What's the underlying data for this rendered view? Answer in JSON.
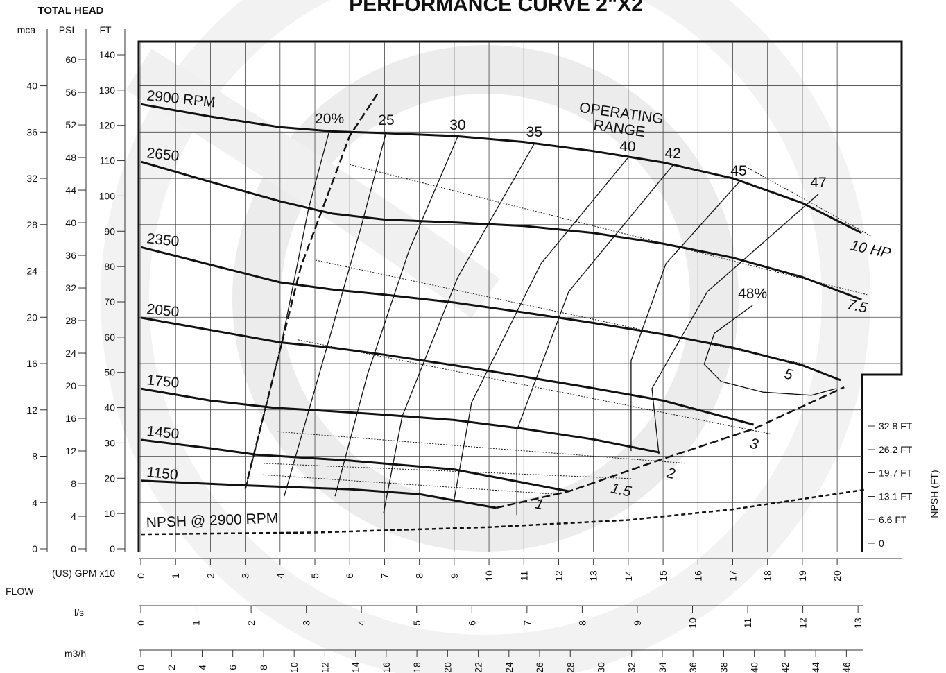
{
  "chart_data": {
    "type": "line",
    "title": "PERFORMANCE CURVE 2\"X2",
    "y_title": "TOTAL HEAD",
    "y_label": "FT",
    "x_label": "(US) GPM x10",
    "x_title": "FLOW",
    "xlim": [
      0,
      21.85
    ],
    "xticks": [
      0,
      1,
      2,
      3,
      4,
      5,
      6,
      7,
      8,
      9,
      10,
      11,
      12,
      13,
      14,
      15,
      16,
      17,
      18,
      19,
      20
    ],
    "ylim": [
      0,
      140
    ],
    "yticks": [
      0,
      10,
      20,
      30,
      40,
      50,
      60,
      70,
      80,
      90,
      100,
      110,
      120,
      130,
      140
    ],
    "grid": true,
    "psi_axis": {
      "label": "PSI",
      "lim": [
        0,
        60.6
      ],
      "ticks": [
        0,
        4,
        8,
        12,
        16,
        20,
        24,
        28,
        32,
        36,
        40,
        44,
        48,
        52,
        56,
        60
      ]
    },
    "mca_axis": {
      "label": "mca",
      "lim": [
        0,
        42.67
      ],
      "ticks": [
        0,
        4,
        8,
        12,
        16,
        20,
        24,
        28,
        32,
        36,
        40
      ]
    },
    "ls_axis": {
      "label": "l/s",
      "lim": [
        0,
        13.79
      ],
      "ticks": [
        0,
        1,
        2,
        3,
        4,
        5,
        6,
        7,
        8,
        9,
        10,
        11,
        12,
        13
      ]
    },
    "m3h_axis": {
      "label": "m3/h",
      "lim": [
        0,
        49.6
      ],
      "ticks": [
        0,
        2,
        4,
        6,
        8,
        10,
        12,
        14,
        16,
        18,
        20,
        22,
        24,
        26,
        28,
        30,
        32,
        34,
        36,
        38,
        40,
        42,
        44,
        46
      ]
    },
    "y2lim": [
      0,
      32.8
    ],
    "y2_label": "NPSH  (FT)",
    "y2ticks": [
      {
        "value": 0,
        "label": "0"
      },
      {
        "value": 6.6,
        "label": "6.6 FT"
      },
      {
        "value": 13.1,
        "label": "13.1 FT"
      },
      {
        "value": 19.7,
        "label": "19.7 FT"
      },
      {
        "value": 26.2,
        "label": "26.2 FT"
      },
      {
        "value": 32.8,
        "label": "32.8 FT"
      }
    ],
    "series": [
      {
        "name": "2900 RPM",
        "color": "#111111",
        "x": [
          0,
          2,
          4,
          5.5,
          7,
          9,
          11,
          13,
          15,
          17,
          19,
          20.7
        ],
        "values": [
          126,
          122.5,
          119.5,
          118.3,
          117.8,
          117,
          115.3,
          112.7,
          109.5,
          105,
          98,
          89.5
        ]
      },
      {
        "name": "2650",
        "color": "#111111",
        "x": [
          0,
          2,
          4,
          5.5,
          7,
          9,
          11,
          13,
          15,
          17,
          19,
          20.7
        ],
        "values": [
          109.7,
          104,
          98.5,
          95,
          93.3,
          92.5,
          91.5,
          89.5,
          86.5,
          82.5,
          77,
          70.6
        ]
      },
      {
        "name": "2350",
        "color": "#111111",
        "x": [
          0,
          2,
          4,
          5.5,
          7,
          9,
          11,
          13,
          15,
          17,
          19,
          20.1
        ],
        "values": [
          85.5,
          80.5,
          75.5,
          73.5,
          72,
          69.8,
          67,
          64,
          60.8,
          57,
          52,
          47.8
        ]
      },
      {
        "name": "2050",
        "color": "#111111",
        "x": [
          0,
          2,
          4,
          5.5,
          7,
          9,
          11,
          13,
          15,
          17.6
        ],
        "values": [
          65.5,
          62,
          58.5,
          57,
          55,
          52,
          48.8,
          45.5,
          42,
          35.2
        ]
      },
      {
        "name": "1750",
        "color": "#111111",
        "x": [
          0,
          2,
          3.8,
          5.5,
          7,
          9,
          11,
          13,
          14.9
        ],
        "values": [
          45.4,
          42,
          40,
          39,
          38,
          36.5,
          34,
          31,
          27.3
        ]
      },
      {
        "name": "1450",
        "color": "#111111",
        "x": [
          0,
          2,
          3.3,
          6,
          9,
          12.3
        ],
        "values": [
          30.9,
          28.5,
          26.7,
          25,
          22.5,
          16.3
        ]
      },
      {
        "name": "1150",
        "color": "#111111",
        "x": [
          0,
          3.2,
          6,
          8,
          10.2
        ],
        "values": [
          19.3,
          17.9,
          16.9,
          15.5,
          11.6
        ]
      }
    ],
    "efficiency_curves": [
      {
        "name": "20%",
        "x": [
          5.42,
          4.82,
          4.02,
          3.03
        ],
        "values": [
          118.6,
          96.5,
          57.2,
          17.9
        ]
      },
      {
        "name": "25",
        "x": [
          7.05,
          6.31,
          5.12,
          4.12
        ],
        "values": [
          118.2,
          90.6,
          49.4,
          14.9
        ]
      },
      {
        "name": "30",
        "x": [
          9.1,
          7.71,
          6.51,
          5.58
        ],
        "values": [
          116.8,
          84.7,
          49.4,
          14.9
        ]
      },
      {
        "name": "35",
        "x": [
          11.3,
          9.1,
          7.51,
          6.97
        ],
        "values": [
          114.8,
          76.9,
          37.6,
          10
        ]
      },
      {
        "name": "40",
        "x": [
          13.98,
          11.49,
          9.5,
          9.0
        ],
        "values": [
          110.7,
          80.8,
          41.5,
          14
        ]
      },
      {
        "name": "42",
        "x": [
          15.28,
          12.29,
          10.8,
          10.8
        ],
        "values": [
          108.7,
          72.9,
          33.6,
          9.6
        ]
      },
      {
        "name": "45",
        "x": [
          17.17,
          15.08,
          14.08,
          14.08
        ],
        "values": [
          103.8,
          80.8,
          53.3,
          27.7
        ]
      },
      {
        "name": "47",
        "x": [
          19.46,
          16.27,
          14.68,
          14.88
        ],
        "values": [
          100.5,
          72.9,
          45.4,
          26.7
        ]
      },
      {
        "name": "48%",
        "x": [
          17.57,
          16.47,
          16.18,
          16.67,
          17.87,
          19.26,
          19.96
        ],
        "values": [
          69,
          61.1,
          52.3,
          47.4,
          44.4,
          43.5,
          45.4
        ]
      }
    ],
    "power_curves": [
      {
        "name": "10 HP",
        "x": [
          17.37,
          20.96
        ],
        "values": [
          108.3,
          88.7
        ]
      },
      {
        "name": "7.5",
        "x": [
          6.0,
          20.86
        ],
        "values": [
          108.9,
          72
        ]
      },
      {
        "name": "5",
        "x": [
          5.02,
          19.06
        ],
        "values": [
          81.8,
          52.3
        ]
      },
      {
        "name": "3",
        "x": [
          4.52,
          18.07
        ],
        "values": [
          59.2,
          32.6
        ]
      },
      {
        "name": "2",
        "x": [
          3.92,
          15.68
        ],
        "values": [
          33.2,
          24.2
        ]
      },
      {
        "name": "1.5",
        "x": [
          3.53,
          14.08
        ],
        "values": [
          24.2,
          19.9
        ]
      },
      {
        "name": "1",
        "x": [
          3.5,
          11.9
        ],
        "values": [
          21,
          15.5
        ]
      }
    ],
    "npsh_curve": {
      "name": "NPSH @ 2900 RPM",
      "axis": "y2",
      "x": [
        0,
        5,
        10,
        14,
        17,
        20.8
      ],
      "values": [
        2.5,
        3,
        4.5,
        6.5,
        9.5,
        15
      ]
    },
    "operating_range": {
      "label": [
        "OPERATING",
        "RANGE"
      ],
      "x": [
        6.8,
        6.0,
        4.6,
        3.0,
        null,
        10.2,
        12.3,
        15.0,
        17.6,
        20.2
      ],
      "values": [
        129,
        117,
        80,
        17,
        null,
        11.6,
        16.3,
        25.5,
        34,
        45.8
      ]
    }
  }
}
